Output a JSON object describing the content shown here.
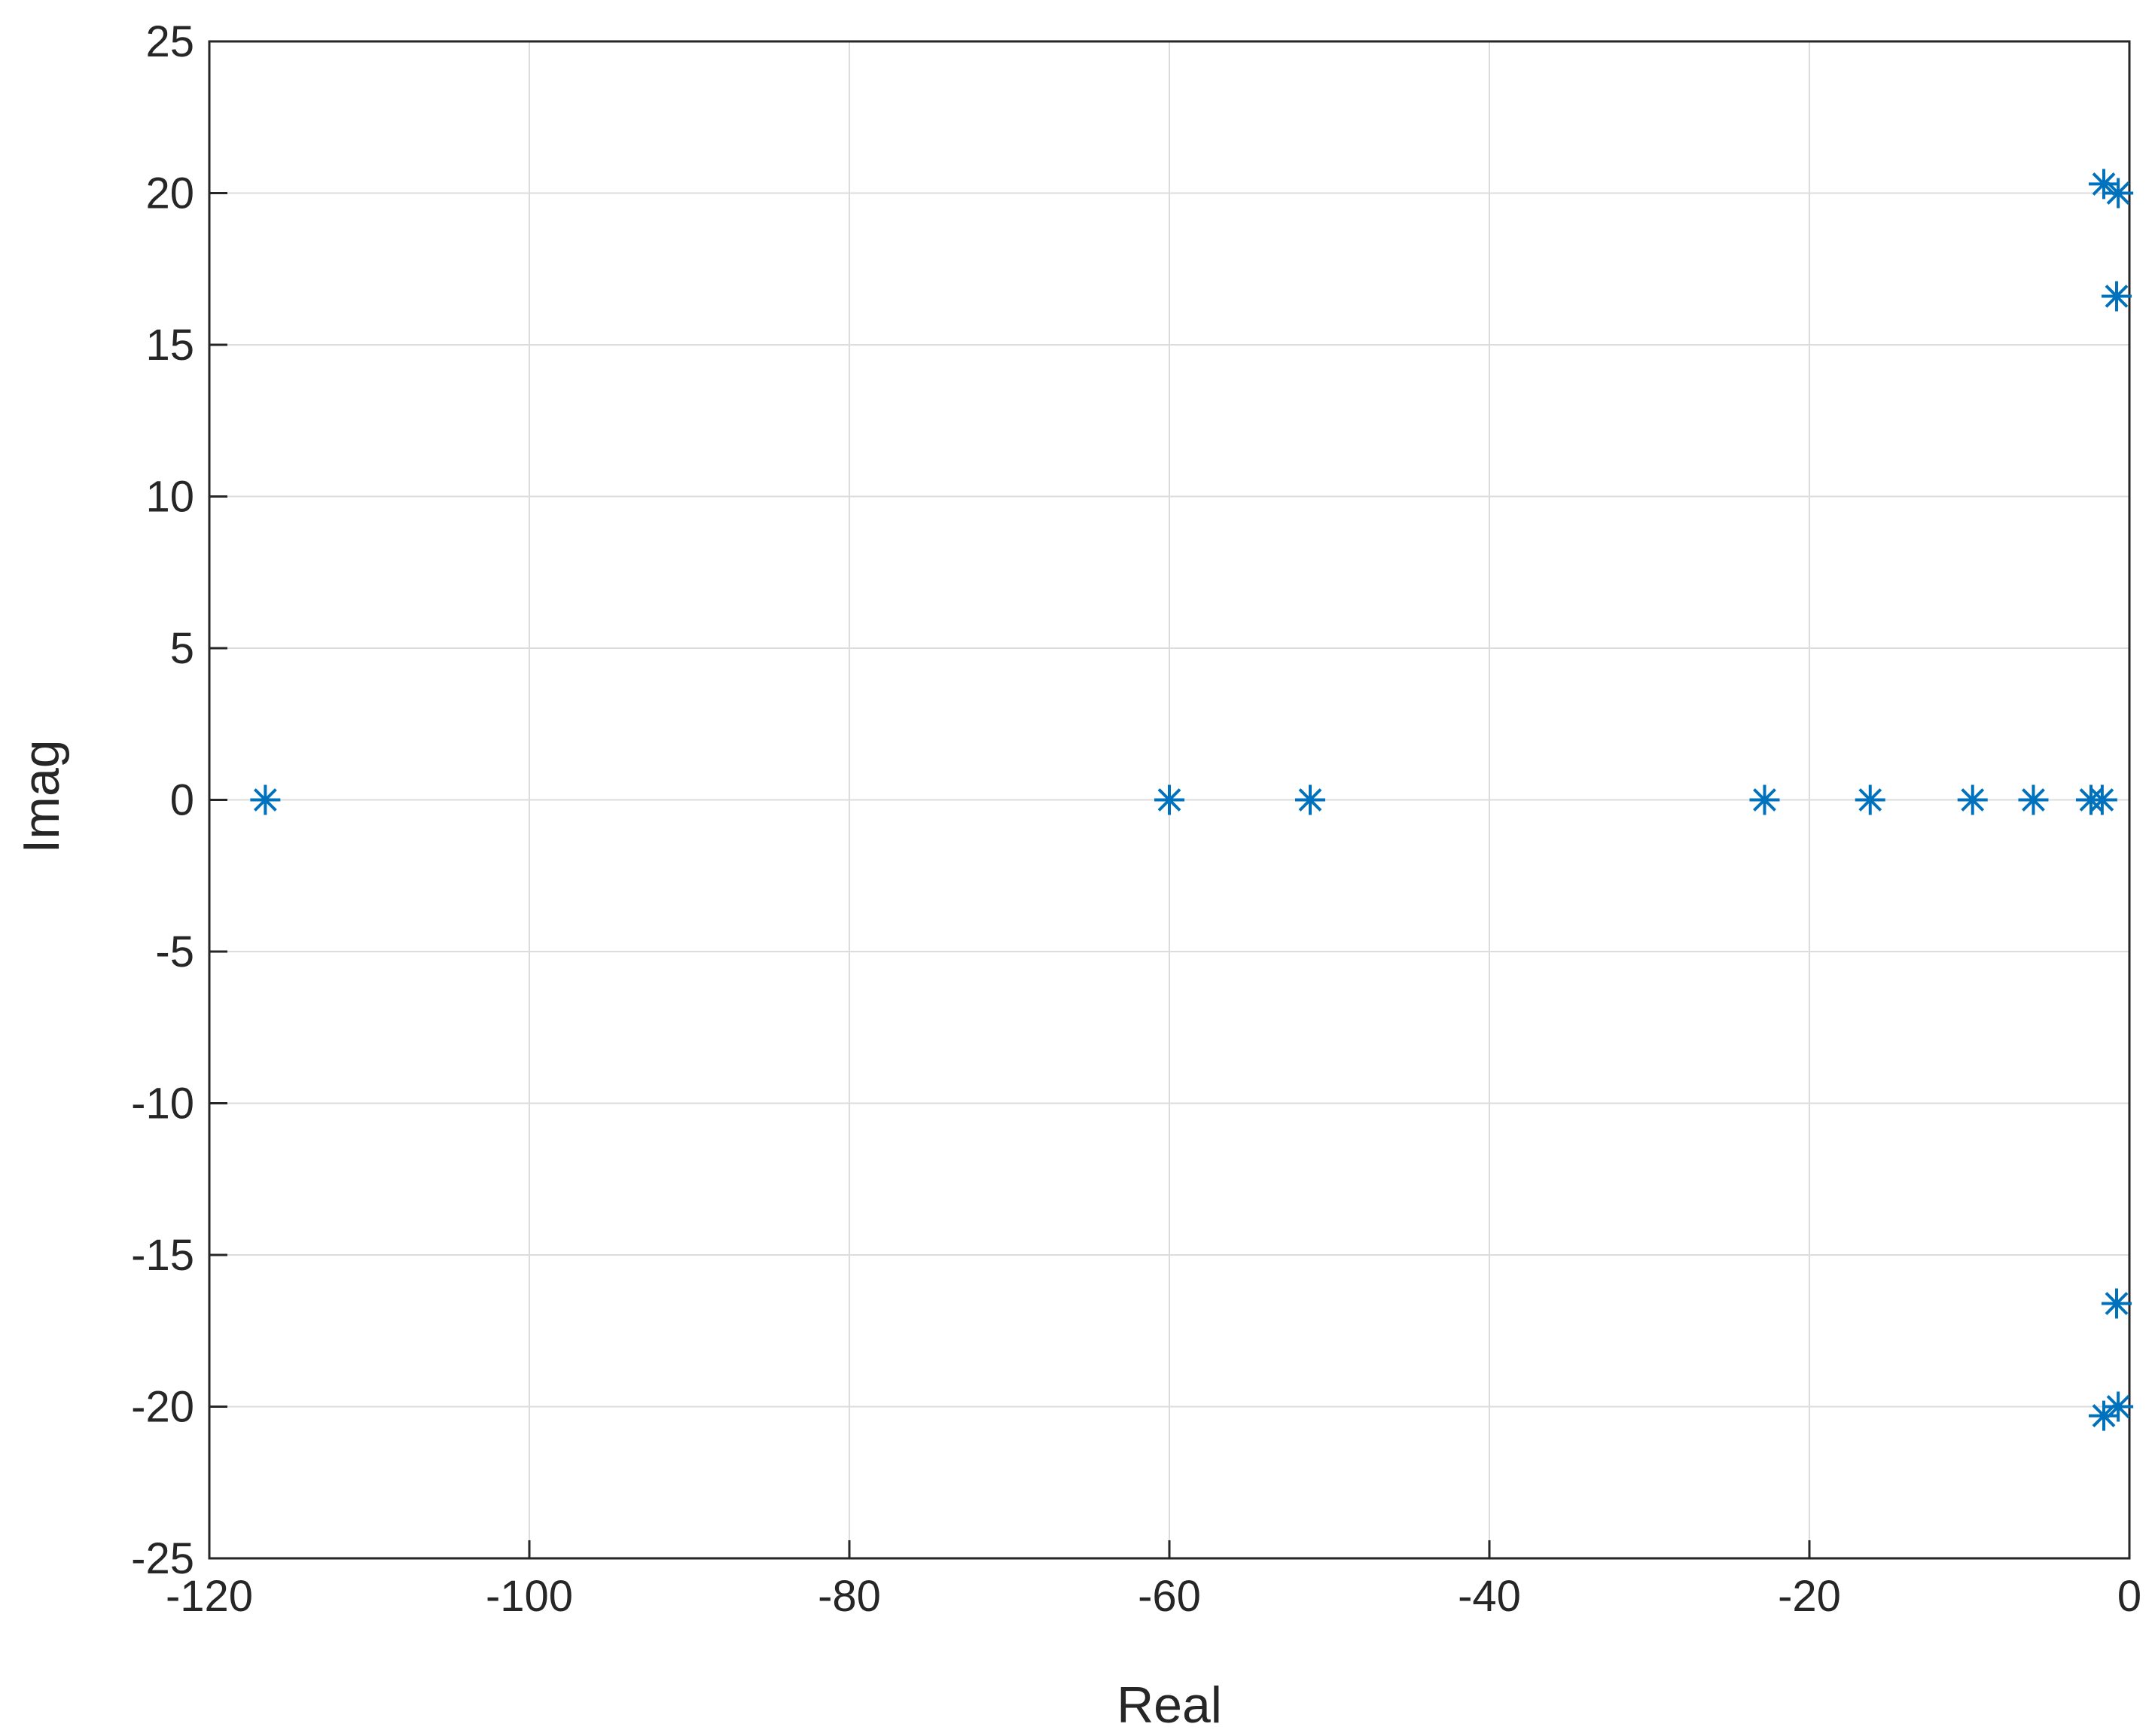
{
  "chart_data": {
    "type": "scatter",
    "title": "",
    "xlabel": "Real",
    "ylabel": "Imag",
    "xlim": [
      -120,
      0
    ],
    "ylim": [
      -25,
      25
    ],
    "xticks": [
      -120,
      -100,
      -80,
      -60,
      -40,
      -20,
      0
    ],
    "yticks": [
      -25,
      -20,
      -15,
      -10,
      -5,
      0,
      5,
      10,
      15,
      20,
      25
    ],
    "grid": true,
    "marker": "asterisk",
    "marker_color": "#0072BD",
    "series": [
      {
        "points": [
          {
            "x": -116.5,
            "y": 0
          },
          {
            "x": -60.0,
            "y": 0
          },
          {
            "x": -51.2,
            "y": 0
          },
          {
            "x": -22.8,
            "y": 0
          },
          {
            "x": -16.2,
            "y": 0
          },
          {
            "x": -9.8,
            "y": 0
          },
          {
            "x": -6.0,
            "y": 0
          },
          {
            "x": -2.4,
            "y": 0
          },
          {
            "x": -1.7,
            "y": 0
          },
          {
            "x": -1.6,
            "y": 20.3
          },
          {
            "x": -0.7,
            "y": 20.0
          },
          {
            "x": -0.8,
            "y": 16.6
          },
          {
            "x": -1.6,
            "y": -20.3
          },
          {
            "x": -0.7,
            "y": -20.0
          },
          {
            "x": -0.8,
            "y": -16.6
          }
        ]
      }
    ]
  }
}
